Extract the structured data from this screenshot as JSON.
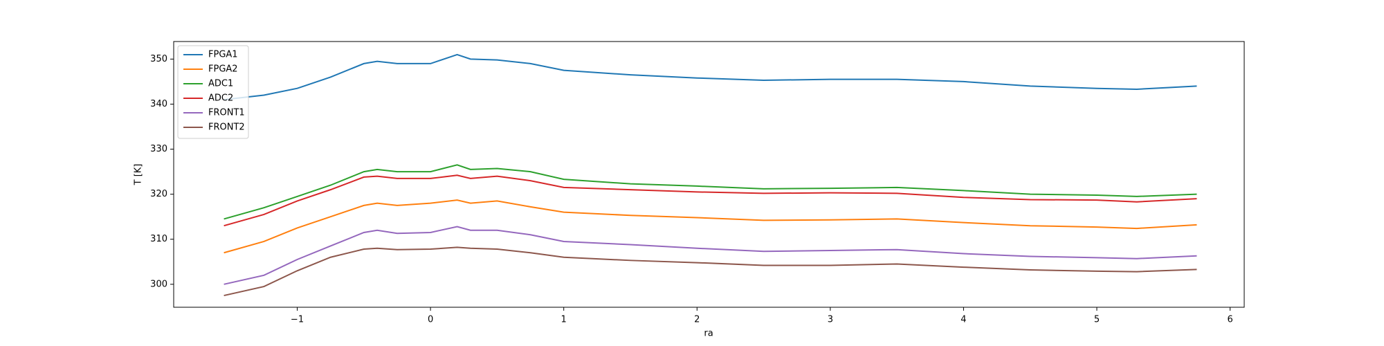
{
  "chart_data": {
    "type": "line",
    "x_label": "ra",
    "y_label": "T [K]",
    "x": [
      -1.55,
      -1.25,
      -1,
      -0.75,
      -0.5,
      -0.4,
      -0.25,
      0,
      0.2,
      0.3,
      0.5,
      0.75,
      1,
      1.5,
      2,
      2.5,
      3,
      3.5,
      4,
      4.5,
      5,
      5.3,
      5.75
    ],
    "series": [
      {
        "name": "FPGA1",
        "color": "#1f77b4",
        "values": [
          341,
          342,
          343.5,
          346,
          349,
          349.5,
          349,
          349,
          351,
          350,
          349.8,
          349,
          347.5,
          346.5,
          345.8,
          345.3,
          345.5,
          345.5,
          345,
          344,
          343.5,
          343.3,
          344
        ]
      },
      {
        "name": "FPGA2",
        "color": "#ff7f0e",
        "values": [
          307,
          309.5,
          312.5,
          315,
          317.5,
          318,
          317.5,
          318,
          318.7,
          318,
          318.5,
          317.2,
          316,
          315.3,
          314.8,
          314.2,
          314.3,
          314.5,
          313.7,
          313,
          312.7,
          312.4,
          313.2
        ]
      },
      {
        "name": "ADC1",
        "color": "#2ca02c",
        "values": [
          314.5,
          317,
          319.5,
          322,
          325,
          325.5,
          325,
          325,
          326.5,
          325.5,
          325.7,
          325,
          323.3,
          322.3,
          321.8,
          321.2,
          321.3,
          321.5,
          320.8,
          320,
          319.8,
          319.5,
          320
        ]
      },
      {
        "name": "ADC2",
        "color": "#d62728",
        "values": [
          313,
          315.5,
          318.5,
          321,
          323.8,
          324,
          323.5,
          323.5,
          324.2,
          323.5,
          324,
          323,
          321.5,
          321,
          320.5,
          320.2,
          320.3,
          320.2,
          319.3,
          318.8,
          318.7,
          318.3,
          319
        ]
      },
      {
        "name": "FRONT1",
        "color": "#9467bd",
        "values": [
          300,
          302,
          305.5,
          308.5,
          311.5,
          312,
          311.3,
          311.5,
          312.8,
          312,
          312,
          311,
          309.5,
          308.8,
          308,
          307.3,
          307.5,
          307.7,
          306.8,
          306.2,
          305.9,
          305.7,
          306.3
        ]
      },
      {
        "name": "FRONT2",
        "color": "#8c564b",
        "values": [
          297.5,
          299.5,
          303,
          306,
          307.8,
          308,
          307.7,
          307.8,
          308.2,
          308,
          307.8,
          307,
          306,
          305.3,
          304.8,
          304.2,
          304.2,
          304.5,
          303.8,
          303.2,
          302.9,
          302.8,
          303.3
        ]
      }
    ],
    "xlim": [
      -1.927,
      6.106
    ],
    "xticks": [
      {
        "value": -1,
        "label": "−1"
      },
      0,
      1,
      2,
      3,
      4,
      5,
      6
    ],
    "ylim": [
      294.9,
      353.9
    ],
    "yticks": [
      300,
      310,
      320,
      330,
      340,
      350
    ],
    "legend": "upper left"
  }
}
